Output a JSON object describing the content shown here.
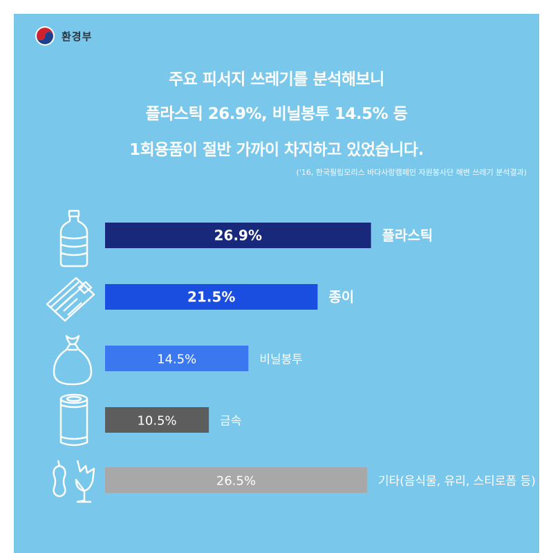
{
  "brand": {
    "name": "환경부"
  },
  "headline": {
    "line1": "주요 피서지 쓰레기를 분석해보니",
    "line2": "플라스틱 26.9%, 비닐봉투 14.5% 등",
    "line3": "1회용품이 절반 가까이 차지하고 있었습니다."
  },
  "source": "('16, 한국필립모리스 바다사랑캠페인 자원봉사단 해변 쓰레기 분석결과)",
  "colors": {
    "background": "#79c7ea",
    "frame": "#ffffff",
    "plastic": "#18287a",
    "paper": "#1a4ee0",
    "vinyl": "#3b78f0",
    "metal": "#5d5d5d",
    "other": "#a8a8a8"
  },
  "chart_data": {
    "type": "bar",
    "orientation": "horizontal",
    "categories": [
      "플라스틱",
      "종이",
      "비닐봉투",
      "금속",
      "기타(음식물, 유리, 스티로폼 등)"
    ],
    "values": [
      26.9,
      21.5,
      14.5,
      10.5,
      26.5
    ],
    "value_labels": [
      "26.9%",
      "21.5%",
      "14.5%",
      "10.5%",
      "26.5%"
    ],
    "icons": [
      "plastic-bottle-icon",
      "newspaper-icon",
      "trash-bag-icon",
      "can-icon",
      "food-waste-glass-icon"
    ],
    "unit": "%",
    "grid": false,
    "legend": "none"
  }
}
